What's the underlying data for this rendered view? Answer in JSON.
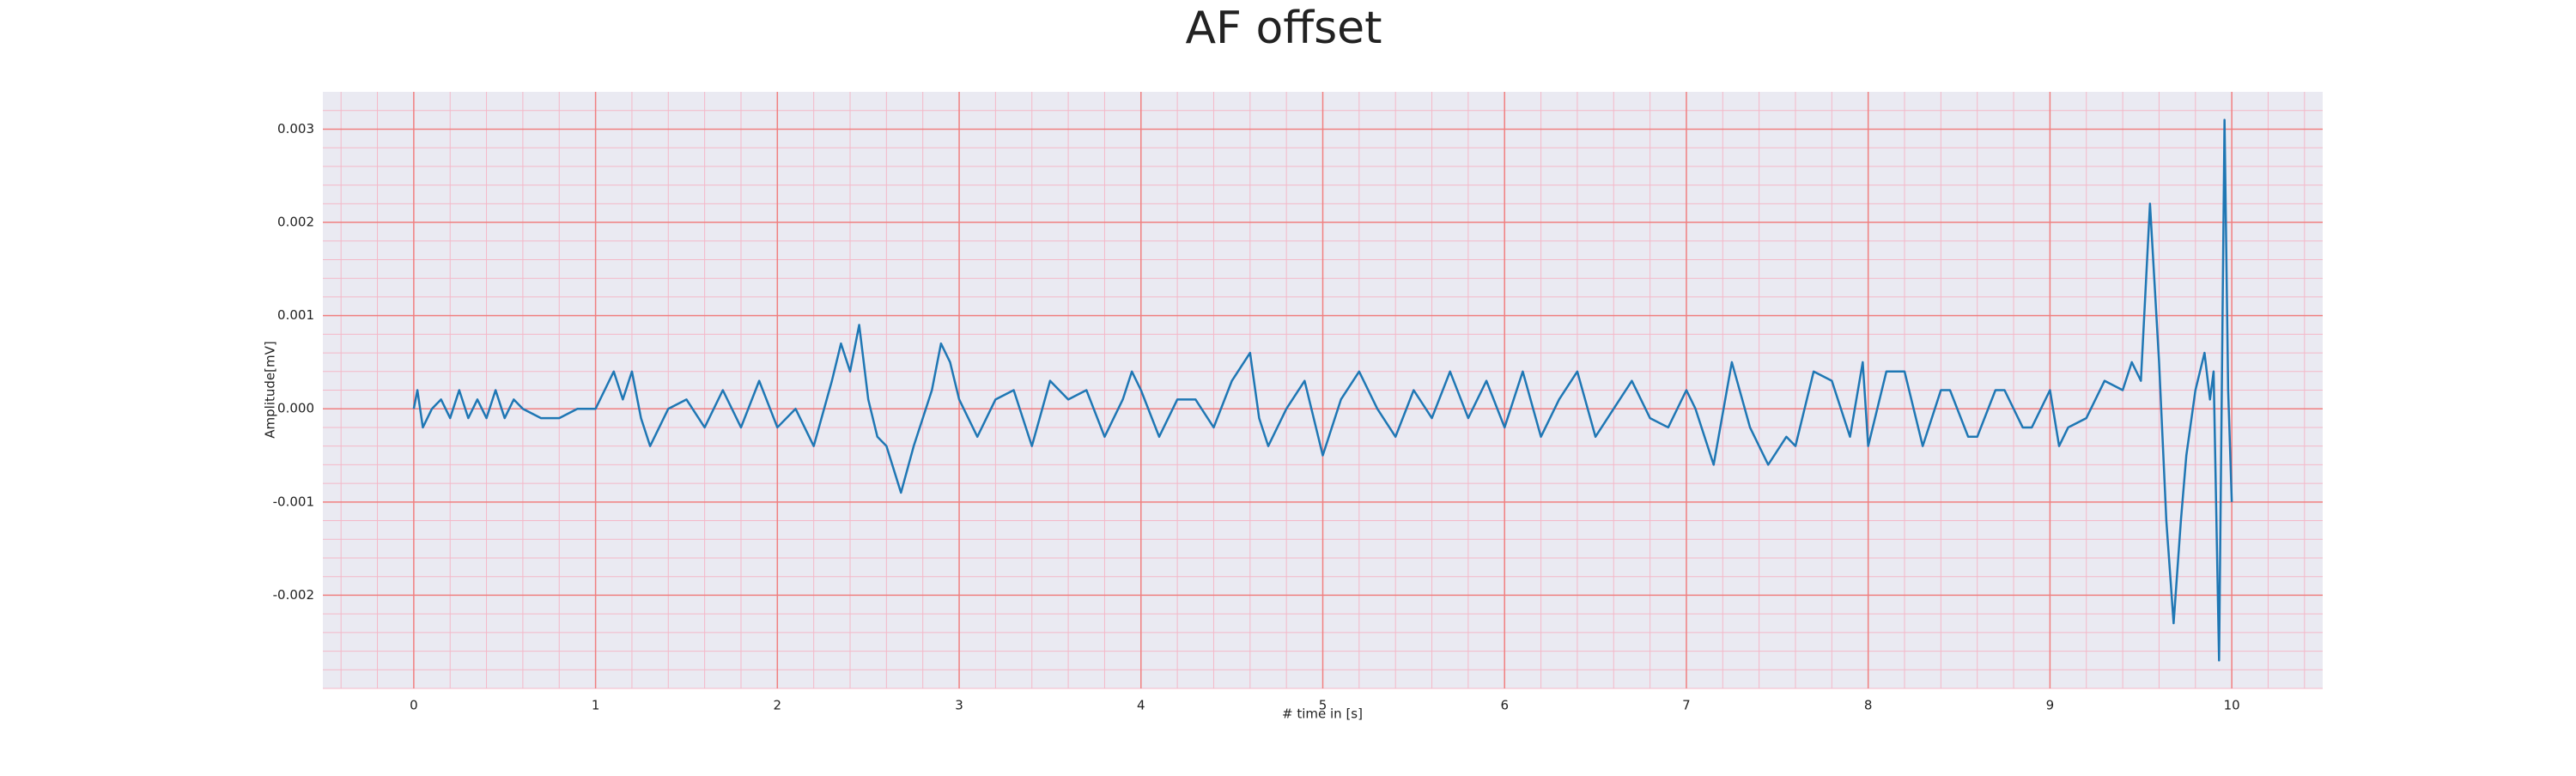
{
  "chart_data": {
    "type": "line",
    "title": "AF offset",
    "xlabel": "# time in [s]",
    "ylabel": "Amplitude[mV]",
    "color": "#1f77b4",
    "x": [
      0,
      0.02,
      0.05,
      0.1,
      0.15,
      0.2,
      0.25,
      0.3,
      0.35,
      0.4,
      0.45,
      0.5,
      0.55,
      0.6,
      0.7,
      0.8,
      0.9,
      1.0,
      1.05,
      1.1,
      1.15,
      1.2,
      1.25,
      1.3,
      1.4,
      1.5,
      1.6,
      1.7,
      1.8,
      1.9,
      2.0,
      2.1,
      2.2,
      2.3,
      2.35,
      2.4,
      2.45,
      2.5,
      2.55,
      2.6,
      2.68,
      2.75,
      2.8,
      2.85,
      2.9,
      2.95,
      3.0,
      3.1,
      3.2,
      3.3,
      3.4,
      3.5,
      3.6,
      3.7,
      3.8,
      3.9,
      3.95,
      4.0,
      4.1,
      4.2,
      4.3,
      4.4,
      4.5,
      4.6,
      4.65,
      4.7,
      4.8,
      4.9,
      5.0,
      5.1,
      5.2,
      5.3,
      5.4,
      5.5,
      5.6,
      5.7,
      5.8,
      5.9,
      6.0,
      6.1,
      6.2,
      6.3,
      6.4,
      6.5,
      6.6,
      6.7,
      6.8,
      6.9,
      7.0,
      7.05,
      7.15,
      7.25,
      7.35,
      7.45,
      7.55,
      7.6,
      7.7,
      7.8,
      7.9,
      7.97,
      8.0,
      8.1,
      8.2,
      8.3,
      8.4,
      8.45,
      8.55,
      8.6,
      8.7,
      8.75,
      8.85,
      8.9,
      9.0,
      9.05,
      9.1,
      9.2,
      9.3,
      9.4,
      9.45,
      9.5,
      9.55,
      9.6,
      9.64,
      9.68,
      9.72,
      9.75,
      9.8,
      9.85,
      9.88,
      9.9,
      9.93,
      9.96,
      9.98,
      10.0
    ],
    "values": [
      0,
      0.0002,
      -0.0002,
      0,
      0.0001,
      -0.0001,
      0.0002,
      -0.0001,
      0.0001,
      -0.0001,
      0.0002,
      -0.0001,
      0.0001,
      0,
      -0.0001,
      -0.0001,
      0,
      0,
      0.0002,
      0.0004,
      0.0001,
      0.0004,
      -0.0001,
      -0.0004,
      0,
      0.0001,
      -0.0002,
      0.0002,
      -0.0002,
      0.0003,
      -0.0002,
      0,
      -0.0004,
      0.0003,
      0.0007,
      0.0004,
      0.0009,
      0.0001,
      -0.0003,
      -0.0004,
      -0.0009,
      -0.0004,
      -0.0001,
      0.0002,
      0.0007,
      0.0005,
      0.0001,
      -0.0003,
      0.0001,
      0.0002,
      -0.0004,
      0.0003,
      0.0001,
      0.0002,
      -0.0003,
      0.0001,
      0.0004,
      0.0002,
      -0.0003,
      0.0001,
      0.0001,
      -0.0002,
      0.0003,
      0.0006,
      -0.0001,
      -0.0004,
      0,
      0.0003,
      -0.0005,
      0.0001,
      0.0004,
      0,
      -0.0003,
      0.0002,
      -0.0001,
      0.0004,
      -0.0001,
      0.0003,
      -0.0002,
      0.0004,
      -0.0003,
      0.0001,
      0.0004,
      -0.0003,
      0,
      0.0003,
      -0.0001,
      -0.0002,
      0.0002,
      0,
      -0.0006,
      0.0005,
      -0.0002,
      -0.0006,
      -0.0003,
      -0.0004,
      0.0004,
      0.0003,
      -0.0003,
      0.0005,
      -0.0004,
      0.0004,
      0.0004,
      -0.0004,
      0.0002,
      0.0002,
      -0.0003,
      -0.0003,
      0.0002,
      0.0002,
      -0.0002,
      -0.0002,
      0.0002,
      -0.0004,
      -0.0002,
      -0.0001,
      0.0003,
      0.0002,
      0.0005,
      0.0003,
      0.0022,
      0.0005,
      -0.0012,
      -0.0023,
      -0.0012,
      -0.0005,
      0.0002,
      0.0006,
      0.0001,
      0.0004,
      -0.0027,
      0.0031,
      0.0002,
      -0.001
    ],
    "xlim": [
      -0.5,
      10.5
    ],
    "xticks": [
      0,
      1,
      2,
      3,
      4,
      5,
      6,
      7,
      8,
      9,
      10
    ],
    "ylim": [
      -0.003,
      0.0034
    ],
    "yticks": [
      -0.002,
      -0.001,
      {
        "value": 0,
        "label": "0.000"
      },
      0.001,
      0.002,
      0.003
    ],
    "grid": true,
    "minor_grid": true,
    "minor_divisions": 5
  }
}
